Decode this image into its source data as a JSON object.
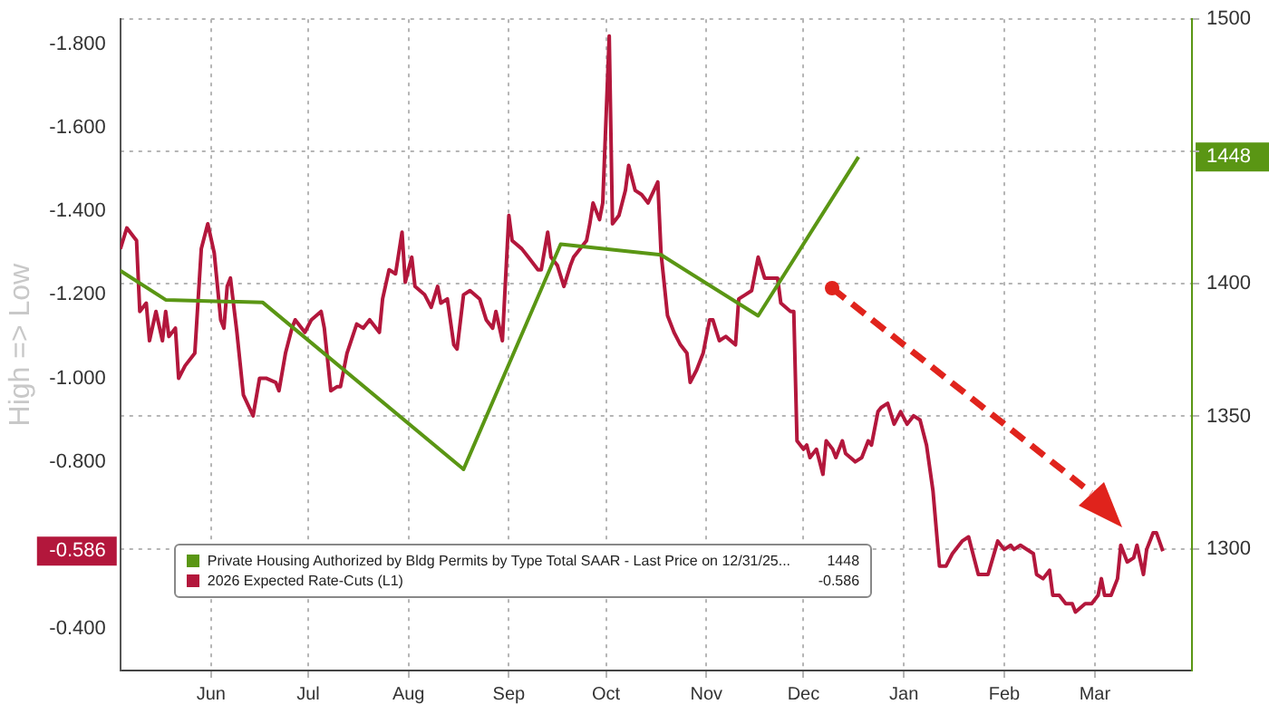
{
  "chart_data": {
    "type": "line",
    "ylabel": "High => Low",
    "annotations": [
      "1448",
      "-0.586"
    ],
    "legend": "bottom left",
    "grid": true,
    "xlim": [
      "2025-05-18",
      "2026-04-14"
    ],
    "xticks": [
      {
        "value": "2025-06-15",
        "label": "Jun"
      },
      {
        "value": "2025-07-15",
        "label": "Jul"
      },
      {
        "value": "2025-08-15",
        "label": "Aug"
      },
      {
        "value": "2025-09-15",
        "label": "Sep"
      },
      {
        "value": "2025-10-15",
        "label": "Oct"
      },
      {
        "value": "2025-11-15",
        "label": "Nov"
      },
      {
        "value": "2025-12-15",
        "label": "Dec"
      },
      {
        "value": "2026-01-15",
        "label": "Jan"
      },
      {
        "value": "2026-02-15",
        "label": "Feb"
      },
      {
        "value": "2026-03-15",
        "label": "Mar"
      }
    ],
    "ylim": [
      -0.3,
      -1.86
    ],
    "yticks": [
      {
        "value": -1.8,
        "label": "-1.800"
      },
      {
        "value": -1.6,
        "label": "-1.600"
      },
      {
        "value": -1.4,
        "label": "-1.400"
      },
      {
        "value": -1.2,
        "label": "-1.200"
      },
      {
        "value": -1.0,
        "label": "-1.000"
      },
      {
        "value": -0.8,
        "label": "-0.800"
      },
      {
        "value": -0.586,
        "label": "-0.586"
      },
      {
        "value": -0.4,
        "label": "-0.400"
      }
    ],
    "y2lim": [
      1254,
      1500
    ],
    "y2ticks": [
      1300,
      1350,
      1400,
      {
        "value": 1450,
        "label": null
      },
      1448,
      1500
    ],
    "series": [
      {
        "name": "Private Housing Authorized by Bldg Permits by Type Total SAAR - Last Price on 12/31/25...",
        "color": "#5a9614",
        "axis": "y2",
        "x": [
          "2025-05-18",
          "2025-06-01",
          "2025-07-01",
          "2025-09-01",
          "2025-10-01",
          "2025-11-01",
          "2025-12-01",
          "2026-01-01"
        ],
        "values": [
          1405,
          1394,
          1393,
          1330,
          1415,
          1411,
          1388,
          1448
        ]
      },
      {
        "name": "2026 Expected Rate-Cuts (L1)",
        "color": "#b3173c",
        "x": [
          "2025-05-18",
          "2025-05-20",
          "2025-05-23",
          "2025-05-24",
          "2025-05-26",
          "2025-05-27",
          "2025-05-29",
          "2025-05-31",
          "2025-06-01",
          "2025-06-02",
          "2025-06-04",
          "2025-06-05",
          "2025-06-07",
          "2025-06-10",
          "2025-06-12",
          "2025-06-14",
          "2025-06-16",
          "2025-06-18",
          "2025-06-19",
          "2025-06-20",
          "2025-06-21",
          "2025-06-23",
          "2025-06-25",
          "2025-06-28",
          "2025-06-30",
          "2025-07-02",
          "2025-07-05",
          "2025-07-06",
          "2025-07-08",
          "2025-07-10",
          "2025-07-11",
          "2025-07-14",
          "2025-07-16",
          "2025-07-19",
          "2025-07-20",
          "2025-07-22",
          "2025-07-24",
          "2025-07-25",
          "2025-07-27",
          "2025-07-30",
          "2025-08-01",
          "2025-08-03",
          "2025-08-06",
          "2025-08-07",
          "2025-08-09",
          "2025-08-11",
          "2025-08-12",
          "2025-08-13",
          "2025-08-14",
          "2025-08-16",
          "2025-08-17",
          "2025-08-20",
          "2025-08-22",
          "2025-08-24",
          "2025-08-25",
          "2025-08-27",
          "2025-08-29",
          "2025-08-30",
          "2025-09-01",
          "2025-09-03",
          "2025-09-06",
          "2025-09-08",
          "2025-09-10",
          "2025-09-11",
          "2025-09-13",
          "2025-09-15",
          "2025-09-16",
          "2025-09-19",
          "2025-09-21",
          "2025-09-24",
          "2025-09-25",
          "2025-09-27",
          "2025-09-28",
          "2025-09-30",
          "2025-10-02",
          "2025-10-04",
          "2025-10-05",
          "2025-10-07",
          "2025-10-09",
          "2025-10-10",
          "2025-10-11",
          "2025-10-13",
          "2025-10-14",
          "2025-10-16",
          "2025-10-17",
          "2025-10-19",
          "2025-10-21",
          "2025-10-22",
          "2025-10-24",
          "2025-10-26",
          "2025-10-28",
          "2025-10-31",
          "2025-11-01",
          "2025-11-03",
          "2025-11-05",
          "2025-11-07",
          "2025-11-09",
          "2025-11-10",
          "2025-11-12",
          "2025-11-14",
          "2025-11-16",
          "2025-11-17",
          "2025-11-19",
          "2025-11-21",
          "2025-11-24",
          "2025-11-25",
          "2025-11-27",
          "2025-11-29",
          "2025-12-01",
          "2025-12-03",
          "2025-12-05",
          "2025-12-07",
          "2025-12-08",
          "2025-12-11",
          "2025-12-12",
          "2025-12-13",
          "2025-12-15",
          "2025-12-16",
          "2025-12-17",
          "2025-12-19",
          "2025-12-21",
          "2025-12-22",
          "2025-12-24",
          "2025-12-25",
          "2025-12-27",
          "2025-12-28",
          "2025-12-31",
          "2026-01-02",
          "2026-01-04",
          "2026-01-05",
          "2026-01-07",
          "2026-01-08",
          "2026-01-10",
          "2026-01-12",
          "2026-01-14",
          "2026-01-16",
          "2026-01-18",
          "2026-01-20",
          "2026-01-22",
          "2026-01-24",
          "2026-01-26",
          "2026-01-28",
          "2026-01-30",
          "2026-02-02",
          "2026-02-04",
          "2026-02-05",
          "2026-02-07",
          "2026-02-10",
          "2026-02-13",
          "2026-02-15",
          "2026-02-17",
          "2026-02-18",
          "2026-02-20",
          "2026-02-24",
          "2026-02-25",
          "2026-02-27",
          "2026-03-01",
          "2026-03-02",
          "2026-03-04",
          "2026-03-06",
          "2026-03-08",
          "2026-03-09",
          "2026-03-12",
          "2026-03-14",
          "2026-03-16",
          "2026-03-17",
          "2026-03-18",
          "2026-03-20",
          "2026-03-22",
          "2026-03-23",
          "2026-03-25",
          "2026-03-27",
          "2026-03-28",
          "2026-03-30",
          "2026-03-31",
          "2026-04-02",
          "2026-04-03",
          "2026-04-05"
        ],
        "values": [
          -1.31,
          -1.36,
          -1.33,
          -1.16,
          -1.18,
          -1.09,
          -1.16,
          -1.09,
          -1.16,
          -1.1,
          -1.12,
          -1.0,
          -1.03,
          -1.06,
          -1.31,
          -1.37,
          -1.3,
          -1.14,
          -1.12,
          -1.22,
          -1.24,
          -1.11,
          -0.96,
          -0.91,
          -1.0,
          -1.0,
          -0.99,
          -0.97,
          -1.06,
          -1.12,
          -1.14,
          -1.11,
          -1.14,
          -1.16,
          -1.12,
          -0.97,
          -0.98,
          -0.98,
          -1.06,
          -1.13,
          -1.12,
          -1.14,
          -1.11,
          -1.19,
          -1.26,
          -1.25,
          -1.3,
          -1.35,
          -1.23,
          -1.29,
          -1.22,
          -1.2,
          -1.17,
          -1.22,
          -1.18,
          -1.19,
          -1.08,
          -1.07,
          -1.2,
          -1.21,
          -1.19,
          -1.14,
          -1.12,
          -1.16,
          -1.09,
          -1.39,
          -1.33,
          -1.31,
          -1.29,
          -1.26,
          -1.26,
          -1.35,
          -1.29,
          -1.27,
          -1.22,
          -1.27,
          -1.29,
          -1.31,
          -1.33,
          -1.37,
          -1.42,
          -1.38,
          -1.42,
          -1.82,
          -1.37,
          -1.39,
          -1.45,
          -1.51,
          -1.45,
          -1.44,
          -1.42,
          -1.47,
          -1.3,
          -1.15,
          -1.11,
          -1.08,
          -1.06,
          -0.99,
          -1.02,
          -1.06,
          -1.14,
          -1.14,
          -1.09,
          -1.1,
          -1.08,
          -1.19,
          -1.2,
          -1.21,
          -1.29,
          -1.24,
          -1.24,
          -1.24,
          -1.18,
          -1.16,
          -1.16,
          -0.85,
          -0.83,
          -0.84,
          -0.81,
          -0.83,
          -0.77,
          -0.85,
          -0.83,
          -0.81,
          -0.85,
          -0.82,
          -0.8,
          -0.81,
          -0.85,
          -0.84,
          -0.92,
          -0.93,
          -0.94,
          -0.89,
          -0.92,
          -0.89,
          -0.91,
          -0.9,
          -0.84,
          -0.73,
          -0.55,
          -0.55,
          -0.58,
          -0.61,
          -0.62,
          -0.59,
          -0.53,
          -0.53,
          -0.61,
          -0.59,
          -0.6,
          -0.59,
          -0.6,
          -0.58,
          -0.53,
          -0.52,
          -0.54,
          -0.48,
          -0.48,
          -0.46,
          -0.46,
          -0.44,
          -0.46,
          -0.46,
          -0.48,
          -0.52,
          -0.48,
          -0.48,
          -0.52,
          -0.6,
          -0.56,
          -0.57,
          -0.6,
          -0.53,
          -0.59,
          -0.63,
          -0.63,
          -0.586
        ]
      }
    ]
  }
}
